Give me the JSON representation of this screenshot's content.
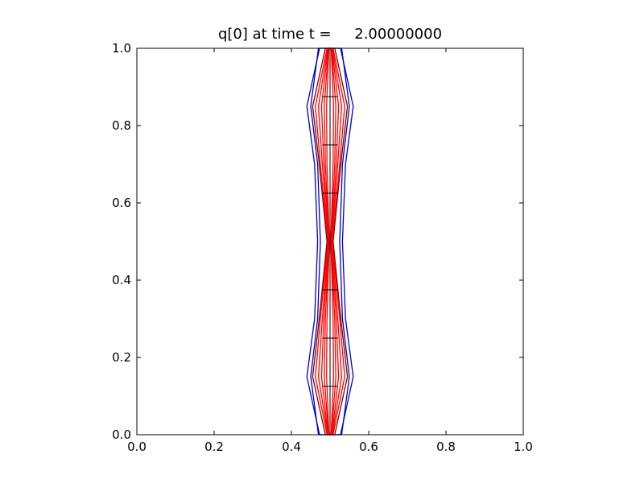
{
  "chart_data": {
    "type": "contour",
    "title": "q[0] at time t =     2.00000000",
    "xlabel": "",
    "ylabel": "",
    "xlim": [
      0.0,
      1.0
    ],
    "ylim": [
      0.0,
      1.0
    ],
    "xticks": [
      "0.0",
      "0.2",
      "0.4",
      "0.6",
      "0.8",
      "1.0"
    ],
    "yticks": [
      "0.0",
      "0.2",
      "0.4",
      "0.6",
      "0.8",
      "1.0"
    ],
    "grid": false,
    "legend": "none",
    "colors": {
      "outer_contours": "#0000cc",
      "inner_contours": "#ff0000",
      "mid_contours": "#800000",
      "grid_patches": "#000000"
    },
    "contour_center_x": 0.5,
    "series": [
      {
        "color": "#0000cc",
        "halfwidth_profile": [
          [
            0.0,
            0.027
          ],
          [
            0.15,
            0.06
          ],
          [
            0.3,
            0.04
          ],
          [
            0.5,
            0.032
          ],
          [
            0.7,
            0.04
          ],
          [
            0.85,
            0.06
          ],
          [
            1.0,
            0.027
          ]
        ]
      },
      {
        "color": "#0000cc",
        "halfwidth_profile": [
          [
            0.0,
            0.03
          ],
          [
            0.15,
            0.05
          ],
          [
            0.3,
            0.032
          ],
          [
            0.5,
            0.025
          ],
          [
            0.7,
            0.032
          ],
          [
            0.85,
            0.05
          ],
          [
            1.0,
            0.03
          ]
        ]
      },
      {
        "color": "#800000",
        "halfwidth_profile": [
          [
            0.0,
            0.012
          ],
          [
            0.15,
            0.045
          ],
          [
            0.3,
            0.028
          ],
          [
            0.5,
            0.008
          ],
          [
            0.7,
            0.028
          ],
          [
            0.85,
            0.045
          ],
          [
            1.0,
            0.012
          ]
        ]
      },
      {
        "color": "#ff0000",
        "halfwidth_profile": [
          [
            0.0,
            0.008
          ],
          [
            0.15,
            0.038
          ],
          [
            0.3,
            0.025
          ],
          [
            0.5,
            0.006
          ],
          [
            0.7,
            0.025
          ],
          [
            0.85,
            0.038
          ],
          [
            1.0,
            0.008
          ]
        ]
      },
      {
        "color": "#ff0000",
        "halfwidth_profile": [
          [
            0.0,
            0.006
          ],
          [
            0.15,
            0.03
          ],
          [
            0.3,
            0.02
          ],
          [
            0.5,
            0.005
          ],
          [
            0.7,
            0.02
          ],
          [
            0.85,
            0.03
          ],
          [
            1.0,
            0.006
          ]
        ]
      },
      {
        "color": "#ff0000",
        "halfwidth_profile": [
          [
            0.0,
            0.005
          ],
          [
            0.15,
            0.022
          ],
          [
            0.3,
            0.016
          ],
          [
            0.5,
            0.004
          ],
          [
            0.7,
            0.016
          ],
          [
            0.85,
            0.022
          ],
          [
            1.0,
            0.005
          ]
        ]
      },
      {
        "color": "#ff0000",
        "halfwidth_profile": [
          [
            0.0,
            0.004
          ],
          [
            0.15,
            0.015
          ],
          [
            0.3,
            0.012
          ],
          [
            0.5,
            0.003
          ],
          [
            0.7,
            0.012
          ],
          [
            0.85,
            0.015
          ],
          [
            1.0,
            0.004
          ]
        ]
      },
      {
        "color": "#ff0000",
        "halfwidth_profile": [
          [
            0.0,
            0.003
          ],
          [
            0.15,
            0.009
          ],
          [
            0.3,
            0.008
          ],
          [
            0.5,
            0.002
          ],
          [
            0.7,
            0.008
          ],
          [
            0.85,
            0.009
          ],
          [
            1.0,
            0.003
          ]
        ]
      }
    ],
    "patch_boundaries_y": [
      0.125,
      0.25,
      0.375,
      0.625,
      0.75,
      0.875
    ]
  }
}
